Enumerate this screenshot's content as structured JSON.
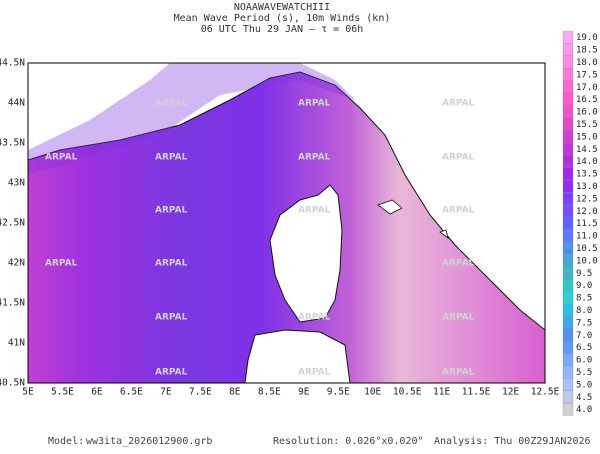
{
  "header": {
    "lines": [
      "NOAAWAVEWATCHIII",
      "Mean Wave Period (s), 10m Winds (kn)",
      "06 UTC Thu 29 JAN  –  τ = 06h"
    ]
  },
  "map": {
    "lat_labels": [
      "44.5N",
      "44N",
      "43.5N",
      "43N",
      "42.5N",
      "42N",
      "41.5N",
      "41N",
      "40.5N"
    ],
    "lon_labels": [
      "5E",
      "5.5E",
      "6E",
      "6.5E",
      "7E",
      "7.5E",
      "8E",
      "8.5E",
      "9E",
      "9.5E",
      "10E",
      "10.5E",
      "11E",
      "11.5E",
      "12E",
      "12.5E"
    ],
    "watermark": "ARPAL"
  },
  "colorbar": {
    "labels": [
      "4.0",
      "4.5",
      "5.0",
      "5.5",
      "6.0",
      "6.5",
      "7.0",
      "7.5",
      "8.0",
      "8.5",
      "9.0",
      "9.5",
      "10.0",
      "10.5",
      "11.0",
      "11.5",
      "12.0",
      "12.5",
      "13.0",
      "13.5",
      "14.0",
      "14.5",
      "15.0",
      "15.5",
      "16.0",
      "16.5",
      "17.0",
      "17.5",
      "18.0",
      "18.5",
      "19.0"
    ],
    "colors": [
      "#d0d0d0",
      "#c0c8e8",
      "#a8c0f8",
      "#90b4ff",
      "#78a8ff",
      "#6098ff",
      "#5090f0",
      "#40a8e8",
      "#30c0e0",
      "#30d0d8",
      "#30c8c0",
      "#40b8c8",
      "#4aa8d8",
      "#5090f0",
      "#5878ff",
      "#6060ff",
      "#7050ff",
      "#8040f8",
      "#9030f0",
      "#a028e8",
      "#b030e0",
      "#c038d8",
      "#d040d0",
      "#e048c8",
      "#f050c8",
      "#ff58c8",
      "#ff68d0",
      "#ff78d8",
      "#ff88e0",
      "#ff98e8",
      "#ffa8f0"
    ]
  },
  "footer": {
    "model_label": "Model:",
    "model": "ww3ita_2026012900.grb",
    "resolution": "Resolution: 0.026°x0.020°",
    "analysis": "Analysis: Thu 00Z29JAN2026"
  }
}
